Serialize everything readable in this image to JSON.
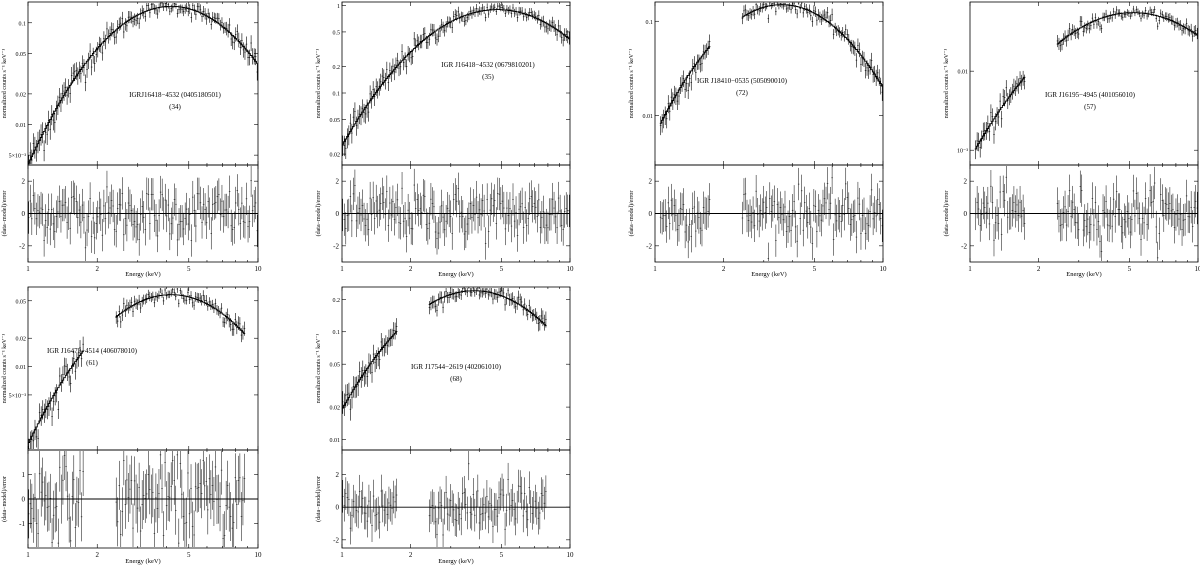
{
  "figure": {
    "xlabel": "Energy (keV)",
    "ylabel_top": "normalized counts s⁻¹ keV⁻¹",
    "ylabel_bottom": "(data−model)/error",
    "xticks": [
      "1",
      "2",
      "5",
      "10"
    ]
  },
  "chart_data": [
    {
      "type": "scatter",
      "title": "IGRJ16418−4532 (0405180501)",
      "label_line2": "(34)",
      "top_scale": "log",
      "top_ylim": [
        0.004,
        0.16
      ],
      "top_yticks": [
        "5×10⁻³",
        "0.01",
        "0.02",
        "0.05",
        "0.1"
      ],
      "top_yvals": [
        0.005,
        0.01,
        0.02,
        0.05,
        0.1
      ],
      "res_ylim": [
        -3,
        3
      ],
      "res_yticks": [
        -2,
        0,
        2
      ],
      "xlim": [
        1,
        10
      ],
      "peak_energy": 4.2,
      "peak_value": 0.145,
      "segments": [
        [
          1,
          10
        ]
      ],
      "model_low_value": 0.004
    },
    {
      "type": "scatter",
      "title": "IGR J16418−4532 (0679810201)",
      "label_line2": "(35)",
      "top_scale": "log",
      "top_ylim": [
        0.015,
        1.1
      ],
      "top_yticks": [
        "0.02",
        "0.05",
        "0.1",
        "0.2",
        "0.5",
        "1"
      ],
      "top_yvals": [
        0.02,
        0.05,
        0.1,
        0.2,
        0.5,
        1
      ],
      "res_ylim": [
        -3,
        3
      ],
      "res_yticks": [
        -2,
        0,
        2
      ],
      "xlim": [
        1,
        10
      ],
      "peak_energy": 4.8,
      "peak_value": 0.9,
      "segments": [
        [
          1,
          10
        ]
      ],
      "model_low_value": 0.025
    },
    {
      "type": "scatter",
      "title": "IGR J18410−0535 (505090010)",
      "label_line2": "(72)",
      "top_scale": "log",
      "top_ylim": [
        0.003,
        0.16
      ],
      "top_yticks": [
        "0.01",
        "0.1"
      ],
      "top_yvals": [
        0.01,
        0.1
      ],
      "res_ylim": [
        -3,
        3
      ],
      "res_yticks": [
        -2,
        0,
        2
      ],
      "xlim": [
        1,
        10
      ],
      "peak_energy": 3.6,
      "peak_value": 0.15,
      "segments": [
        [
          1.05,
          1.75
        ],
        [
          2.4,
          10
        ]
      ],
      "model_low_value": 0.008
    },
    {
      "type": "scatter",
      "title": "IGR J16195−4945 (401056010)",
      "label_line2": "(57)",
      "top_scale": "log",
      "top_ylim": [
        0.00065,
        0.075
      ],
      "top_yticks": [
        "10⁻³",
        "0.01"
      ],
      "top_yvals": [
        0.001,
        0.01
      ],
      "res_ylim": [
        -3,
        3
      ],
      "res_yticks": [
        -2,
        0,
        2
      ],
      "xlim": [
        1,
        10
      ],
      "peak_energy": 5.2,
      "peak_value": 0.055,
      "segments": [
        [
          1.05,
          1.75
        ],
        [
          2.4,
          10
        ]
      ],
      "model_low_value": 0.001
    },
    {
      "type": "scatter",
      "title": "IGR J16479−4514 (406078010)",
      "label_line2": "(61)",
      "top_scale": "log",
      "top_ylim": [
        0.0013,
        0.07
      ],
      "top_yticks": [
        "5×10⁻³",
        "0.01",
        "0.02",
        "0.05"
      ],
      "top_yvals": [
        0.005,
        0.01,
        0.02,
        0.05
      ],
      "res_ylim": [
        -2,
        2
      ],
      "res_yticks": [
        -1,
        0,
        1
      ],
      "xlim": [
        1,
        10
      ],
      "peak_energy": 4.2,
      "peak_value": 0.058,
      "segments": [
        [
          1,
          1.75
        ],
        [
          2.4,
          8.8
        ]
      ],
      "model_low_value": 0.0015
    },
    {
      "type": "scatter",
      "title": "IGR J17544−2619 (402061010)",
      "label_line2": "(68)",
      "top_scale": "log",
      "top_ylim": [
        0.008,
        0.26
      ],
      "top_yticks": [
        "0.01",
        "0.02",
        "0.05",
        "0.1",
        "0.2"
      ],
      "top_yvals": [
        0.01,
        0.02,
        0.05,
        0.1,
        0.2
      ],
      "res_ylim": [
        -2.5,
        3.5
      ],
      "res_yticks": [
        -2,
        0,
        2
      ],
      "xlim": [
        1,
        10
      ],
      "peak_energy": 3.8,
      "peak_value": 0.24,
      "segments": [
        [
          1,
          1.75
        ],
        [
          2.4,
          7.9
        ]
      ],
      "model_low_value": 0.019
    }
  ]
}
